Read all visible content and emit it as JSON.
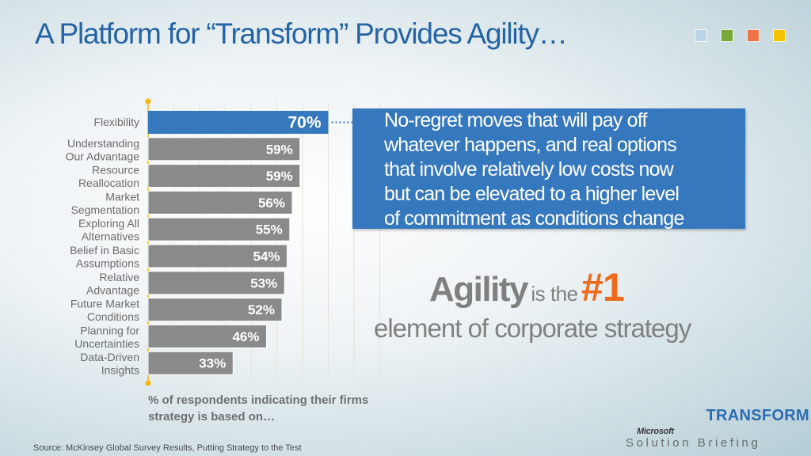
{
  "title": "A Platform for “Transform” Provides Agility…",
  "colors": {
    "title": "#2464a6",
    "highlight_bar": "#3678bd",
    "bar": "#8a8a8a",
    "accent_orange": "#ee6b1b",
    "axis_dot": "#f2b711"
  },
  "color_squares": [
    "#bcd3e8",
    "#76a83a",
    "#ee7448",
    "#f5c400"
  ],
  "callout": {
    "lines": [
      "No-regret moves that will pay off",
      "whatever happens, and real options",
      "that involve relatively low costs now",
      "but can be elevated to a higher level",
      "of commitment as conditions change"
    ]
  },
  "agility": {
    "word": "Agility",
    "is_the": "is the",
    "rank": "#1",
    "line2": "element of corporate strategy"
  },
  "respondents_note": "% of respondents indicating their firms strategy is based on…",
  "source": "Source: McKinsey Global Survey Results, Putting Strategy to the Test",
  "brand": {
    "transform": "TRANSFORM",
    "microsoft": "Microsoft",
    "solution_briefing": "Solution Briefing"
  },
  "chart_data": {
    "type": "bar",
    "orientation": "horizontal",
    "categories": [
      [
        "Flexibility"
      ],
      [
        "Understanding",
        "Our Advantage"
      ],
      [
        "Resource",
        "Reallocation"
      ],
      [
        "Market",
        "Segmentation"
      ],
      [
        "Exploring All",
        "Alternatives"
      ],
      [
        "Belief in Basic",
        "Assumptions"
      ],
      [
        "Relative",
        "Advantage"
      ],
      [
        "Future Market",
        "Conditions"
      ],
      [
        "Planning for",
        "Uncertainties"
      ],
      [
        "Data-Driven",
        "Insights"
      ]
    ],
    "values": [
      70,
      59,
      59,
      56,
      55,
      54,
      53,
      52,
      46,
      33
    ],
    "value_labels": [
      "70%",
      "59%",
      "59%",
      "56%",
      "55%",
      "54%",
      "53%",
      "52%",
      "46%",
      "33%"
    ],
    "highlight_index": 0,
    "xlim": [
      0,
      100
    ],
    "grid": true,
    "xlabel": "",
    "ylabel": ""
  }
}
